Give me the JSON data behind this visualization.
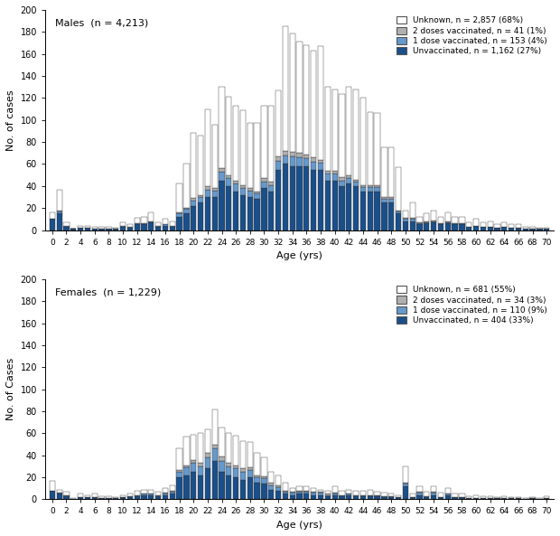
{
  "ages": [
    0,
    1,
    2,
    3,
    4,
    5,
    6,
    7,
    8,
    9,
    10,
    11,
    12,
    13,
    14,
    15,
    16,
    17,
    18,
    19,
    20,
    21,
    22,
    23,
    24,
    25,
    26,
    27,
    28,
    29,
    30,
    31,
    32,
    33,
    34,
    35,
    36,
    37,
    38,
    39,
    40,
    41,
    42,
    43,
    44,
    45,
    46,
    47,
    48,
    49,
    50,
    51,
    52,
    53,
    54,
    55,
    56,
    57,
    58,
    59,
    60,
    61,
    62,
    63,
    64,
    65,
    66,
    67,
    68,
    69,
    70
  ],
  "males": {
    "title": "Males  (n = 4,213)",
    "legend_items": [
      "Unknown, n = 2,857 (68%)",
      "2 doses vaccinated, n = 41 (1%)",
      "1 dose vaccinated, n = 153 (4%)",
      "Unvaccinated, n = 1,162 (27%)"
    ],
    "total": [
      16,
      37,
      7,
      1,
      4,
      4,
      3,
      3,
      3,
      2,
      7,
      5,
      11,
      12,
      16,
      7,
      10,
      8,
      42,
      60,
      88,
      86,
      110,
      96,
      130,
      121,
      113,
      109,
      97,
      97,
      113,
      113,
      127,
      185,
      179,
      171,
      168,
      163,
      167,
      130,
      128,
      124,
      130,
      128,
      120,
      107,
      106,
      75,
      75,
      57,
      18,
      25,
      12,
      15,
      18,
      12,
      16,
      12,
      12,
      7,
      10,
      7,
      8,
      5,
      7,
      5,
      5,
      3,
      3,
      2,
      2
    ],
    "unvaccinated": [
      10,
      15,
      3,
      1,
      2,
      2,
      1,
      1,
      1,
      1,
      3,
      2,
      5,
      5,
      7,
      3,
      4,
      3,
      12,
      15,
      22,
      25,
      30,
      30,
      45,
      40,
      35,
      32,
      30,
      28,
      38,
      35,
      55,
      60,
      58,
      58,
      58,
      55,
      55,
      45,
      45,
      40,
      42,
      40,
      35,
      35,
      35,
      25,
      25,
      15,
      8,
      8,
      5,
      6,
      7,
      5,
      6,
      5,
      5,
      3,
      4,
      3,
      3,
      2,
      3,
      2,
      2,
      1,
      1,
      1,
      1
    ],
    "one_dose": [
      0,
      2,
      1,
      0,
      0,
      0,
      0,
      0,
      0,
      0,
      1,
      1,
      1,
      1,
      1,
      1,
      1,
      1,
      3,
      4,
      5,
      5,
      7,
      6,
      8,
      7,
      7,
      6,
      6,
      5,
      6,
      6,
      8,
      8,
      9,
      8,
      7,
      7,
      6,
      6,
      6,
      5,
      5,
      4,
      4,
      4,
      4,
      3,
      3,
      2,
      2,
      2,
      1,
      1,
      1,
      1,
      1,
      1,
      1,
      0,
      0,
      0,
      0,
      0,
      0,
      0,
      0,
      0,
      0,
      0,
      0
    ],
    "two_dose": [
      0,
      1,
      0,
      0,
      0,
      0,
      0,
      0,
      0,
      0,
      0,
      0,
      0,
      0,
      0,
      0,
      0,
      0,
      1,
      1,
      2,
      2,
      3,
      2,
      3,
      3,
      3,
      3,
      2,
      2,
      3,
      3,
      4,
      4,
      4,
      4,
      4,
      4,
      3,
      3,
      3,
      3,
      3,
      2,
      2,
      2,
      2,
      2,
      2,
      1,
      1,
      1,
      1,
      1,
      1,
      0,
      1,
      0,
      0,
      0,
      0,
      0,
      0,
      0,
      0,
      0,
      0,
      0,
      0,
      0,
      0
    ],
    "unknown": [
      6,
      19,
      3,
      0,
      2,
      2,
      2,
      2,
      2,
      1,
      3,
      2,
      5,
      6,
      8,
      3,
      5,
      4,
      26,
      40,
      59,
      54,
      70,
      58,
      74,
      71,
      68,
      68,
      59,
      62,
      66,
      69,
      60,
      113,
      108,
      101,
      99,
      97,
      103,
      76,
      74,
      76,
      80,
      82,
      79,
      66,
      65,
      45,
      45,
      39,
      7,
      14,
      5,
      7,
      9,
      6,
      8,
      6,
      6,
      4,
      6,
      4,
      5,
      3,
      4,
      3,
      3,
      2,
      2,
      1,
      1
    ]
  },
  "females": {
    "title": "Females  (n = 1,229)",
    "legend_items": [
      "Unknown, n = 681 (55%)",
      "2 doses vaccinated, n = 34 (3%)",
      "1 dose vaccinated, n = 110 (9%)",
      "Unvaccinated, n = 404 (33%)"
    ],
    "total": [
      17,
      9,
      7,
      1,
      5,
      4,
      5,
      3,
      3,
      2,
      4,
      5,
      8,
      9,
      9,
      7,
      10,
      13,
      46,
      57,
      59,
      60,
      64,
      82,
      65,
      60,
      58,
      53,
      52,
      42,
      38,
      25,
      22,
      15,
      10,
      12,
      12,
      10,
      9,
      8,
      12,
      8,
      9,
      8,
      8,
      9,
      7,
      6,
      5,
      4,
      30,
      5,
      12,
      7,
      12,
      6,
      10,
      5,
      5,
      3,
      4,
      3,
      3,
      2,
      3,
      2,
      2,
      1,
      2,
      1,
      3
    ],
    "unvaccinated": [
      8,
      5,
      3,
      0,
      2,
      2,
      2,
      1,
      1,
      1,
      2,
      2,
      3,
      4,
      4,
      3,
      4,
      5,
      20,
      22,
      25,
      22,
      28,
      35,
      25,
      22,
      20,
      18,
      20,
      15,
      14,
      9,
      8,
      5,
      4,
      5,
      5,
      4,
      4,
      3,
      4,
      3,
      4,
      3,
      3,
      3,
      3,
      2,
      2,
      2,
      12,
      2,
      4,
      2,
      4,
      2,
      4,
      2,
      2,
      1,
      1,
      1,
      1,
      1,
      1,
      1,
      1,
      0,
      1,
      0,
      1
    ],
    "one_dose": [
      0,
      1,
      1,
      0,
      0,
      0,
      0,
      0,
      0,
      0,
      0,
      1,
      1,
      1,
      1,
      1,
      1,
      2,
      5,
      7,
      8,
      8,
      10,
      11,
      10,
      8,
      8,
      7,
      7,
      5,
      5,
      4,
      3,
      2,
      2,
      2,
      2,
      2,
      2,
      1,
      1,
      1,
      1,
      1,
      1,
      1,
      1,
      1,
      1,
      0,
      2,
      0,
      2,
      1,
      2,
      0,
      1,
      0,
      0,
      0,
      0,
      0,
      0,
      0,
      0,
      0,
      0,
      0,
      0,
      0,
      0
    ],
    "two_dose": [
      0,
      0,
      0,
      0,
      0,
      0,
      0,
      0,
      0,
      0,
      0,
      0,
      0,
      0,
      0,
      0,
      1,
      1,
      2,
      2,
      3,
      3,
      4,
      4,
      4,
      3,
      3,
      3,
      2,
      2,
      2,
      2,
      2,
      1,
      1,
      1,
      1,
      1,
      1,
      1,
      1,
      0,
      0,
      0,
      0,
      0,
      0,
      0,
      0,
      0,
      1,
      0,
      1,
      0,
      1,
      0,
      0,
      0,
      0,
      0,
      0,
      0,
      0,
      0,
      0,
      0,
      0,
      0,
      0,
      0,
      0
    ],
    "unknown": [
      9,
      3,
      3,
      1,
      3,
      2,
      3,
      2,
      2,
      1,
      2,
      2,
      4,
      4,
      4,
      3,
      4,
      5,
      19,
      26,
      23,
      27,
      22,
      32,
      26,
      27,
      27,
      25,
      23,
      20,
      17,
      10,
      9,
      7,
      3,
      4,
      4,
      3,
      2,
      3,
      6,
      4,
      4,
      4,
      4,
      5,
      3,
      3,
      2,
      2,
      15,
      3,
      5,
      4,
      5,
      4,
      5,
      3,
      3,
      2,
      3,
      2,
      2,
      1,
      2,
      1,
      1,
      1,
      1,
      1,
      2
    ]
  },
  "colors": {
    "unknown": "#ffffff",
    "two_dose": "#b0b0b0",
    "one_dose": "#6699cc",
    "unvaccinated": "#1a4f8a"
  },
  "edge_color": "#333333",
  "ylim": [
    0,
    200
  ],
  "yticks": [
    0,
    20,
    40,
    60,
    80,
    100,
    120,
    140,
    160,
    180,
    200
  ],
  "ylabel": "No. of cases",
  "ylabel_female": "No. of Cases",
  "xlabel": "Age (yrs)",
  "xticks": [
    0,
    2,
    4,
    6,
    8,
    10,
    12,
    14,
    16,
    18,
    20,
    22,
    24,
    26,
    28,
    30,
    32,
    34,
    36,
    38,
    40,
    42,
    44,
    46,
    48,
    50,
    52,
    54,
    56,
    58,
    60,
    62,
    64,
    66,
    68,
    70
  ]
}
